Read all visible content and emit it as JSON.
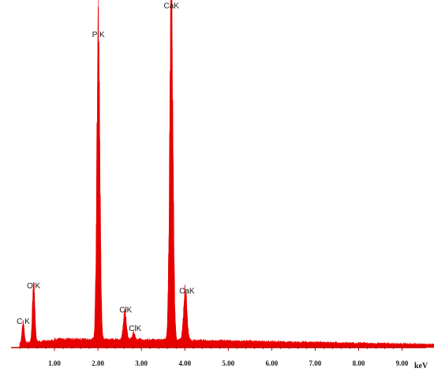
{
  "chart_data": {
    "type": "area",
    "title": "",
    "xlabel": "keV",
    "ylabel": "",
    "xlim": [
      0.0,
      10.0
    ],
    "ylim": [
      0,
      1000
    ],
    "grid": false,
    "legend": "none",
    "color": "#e60000",
    "x_ticks": [
      "1.00",
      "2.00",
      "3.00",
      "4.00",
      "5.00",
      "6.00",
      "7.00",
      "8.00",
      "9.00"
    ],
    "x_tick_values": [
      1,
      2,
      3,
      4,
      5,
      6,
      7,
      8,
      9
    ],
    "background_counts": 20,
    "peaks": [
      {
        "label": "C K",
        "energy": 0.28,
        "counts": 60,
        "width": 0.025
      },
      {
        "label": "O K",
        "energy": 0.52,
        "counts": 165,
        "width": 0.028
      },
      {
        "label": "P K",
        "energy": 2.01,
        "counts": 905,
        "width": 0.035
      },
      {
        "label": "ClK",
        "energy": 2.62,
        "counts": 80,
        "width": 0.035
      },
      {
        "label": "ClK",
        "energy": 2.82,
        "counts": 20,
        "width": 0.03
      },
      {
        "label": "CaK",
        "energy": 3.69,
        "counts": 990,
        "width": 0.038
      },
      {
        "label": "CaK",
        "energy": 4.01,
        "counts": 150,
        "width": 0.038
      }
    ]
  }
}
